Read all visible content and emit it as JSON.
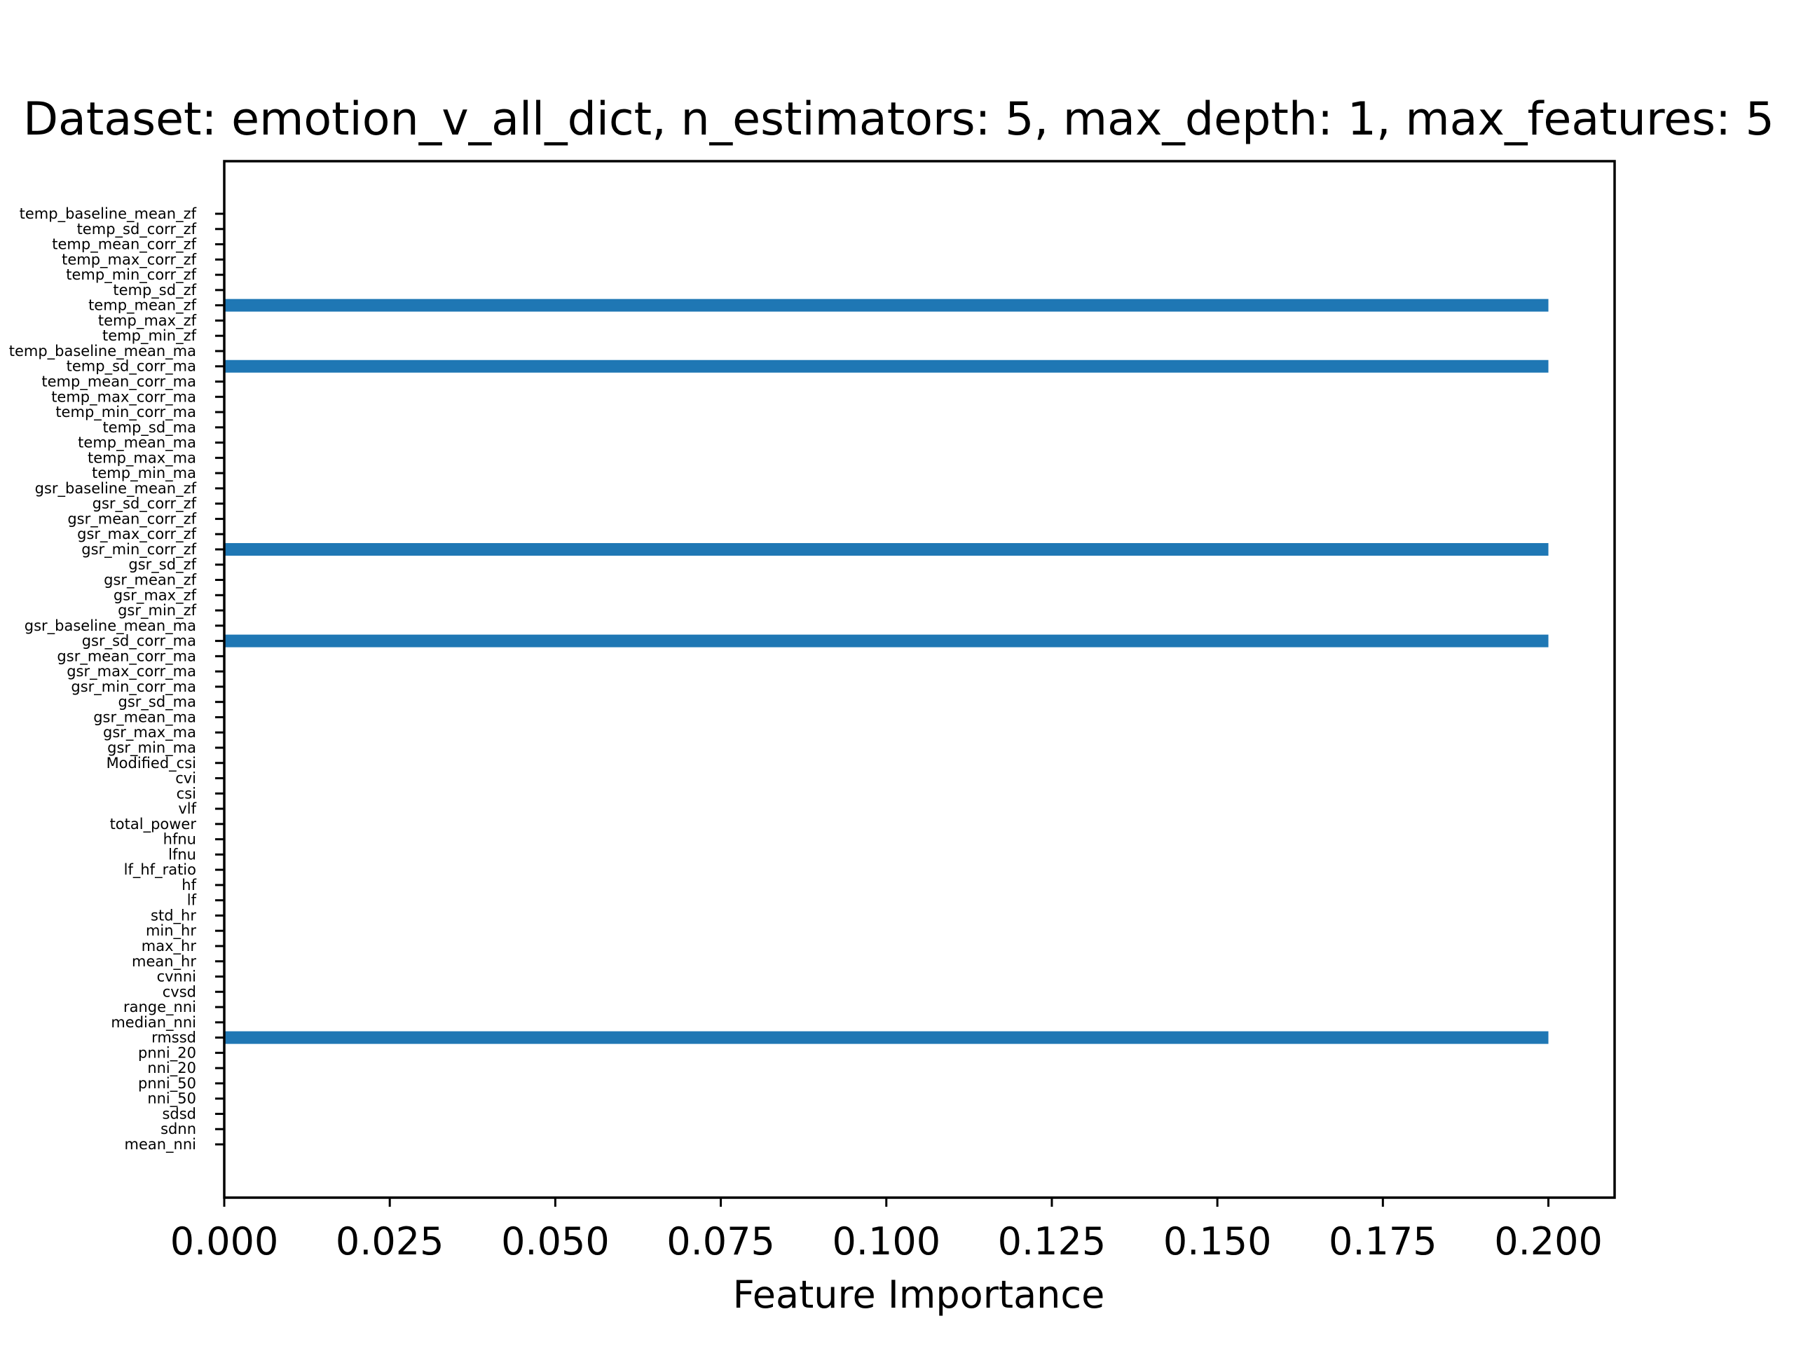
{
  "chart_data": {
    "type": "bar",
    "orientation": "horizontal",
    "title": "Dataset: emotion_v_all_dict, n_estimators: 5, max_depth: 1, max_features: 5",
    "xlabel": "Feature Importance",
    "ylabel": "",
    "xlim": [
      0,
      0.21
    ],
    "x_ticks": [
      "0.000",
      "0.025",
      "0.050",
      "0.075",
      "0.100",
      "0.125",
      "0.150",
      "0.175",
      "0.200"
    ],
    "grid": false,
    "bar_color": "#1f77b4",
    "categories": [
      "mean_nni",
      "sdnn",
      "sdsd",
      "nni_50",
      "pnni_50",
      "nni_20",
      "pnni_20",
      "rmssd",
      "median_nni",
      "range_nni",
      "cvsd",
      "cvnni",
      "mean_hr",
      "max_hr",
      "min_hr",
      "std_hr",
      "lf",
      "hf",
      "lf_hf_ratio",
      "lfnu",
      "hfnu",
      "total_power",
      "vlf",
      "csi",
      "cvi",
      "Modified_csi",
      "gsr_min_ma",
      "gsr_max_ma",
      "gsr_mean_ma",
      "gsr_sd_ma",
      "gsr_min_corr_ma",
      "gsr_max_corr_ma",
      "gsr_mean_corr_ma",
      "gsr_sd_corr_ma",
      "gsr_baseline_mean_ma",
      "gsr_min_zf",
      "gsr_max_zf",
      "gsr_mean_zf",
      "gsr_sd_zf",
      "gsr_min_corr_zf",
      "gsr_max_corr_zf",
      "gsr_mean_corr_zf",
      "gsr_sd_corr_zf",
      "gsr_baseline_mean_zf",
      "temp_min_ma",
      "temp_max_ma",
      "temp_mean_ma",
      "temp_sd_ma",
      "temp_min_corr_ma",
      "temp_max_corr_ma",
      "temp_mean_corr_ma",
      "temp_sd_corr_ma",
      "temp_baseline_mean_ma",
      "temp_min_zf",
      "temp_max_zf",
      "temp_mean_zf",
      "temp_sd_zf",
      "temp_min_corr_zf",
      "temp_max_corr_zf",
      "temp_mean_corr_zf",
      "temp_sd_corr_zf",
      "temp_baseline_mean_zf"
    ],
    "values": [
      0,
      0,
      0,
      0,
      0,
      0,
      0,
      0.2,
      0,
      0,
      0,
      0,
      0,
      0,
      0,
      0,
      0,
      0,
      0,
      0,
      0,
      0,
      0,
      0,
      0,
      0,
      0,
      0,
      0,
      0,
      0,
      0,
      0,
      0.2,
      0,
      0,
      0,
      0,
      0,
      0.2,
      0,
      0,
      0,
      0,
      0,
      0,
      0,
      0,
      0,
      0,
      0,
      0.2,
      0,
      0,
      0,
      0.2,
      0,
      0,
      0,
      0,
      0,
      0
    ]
  }
}
